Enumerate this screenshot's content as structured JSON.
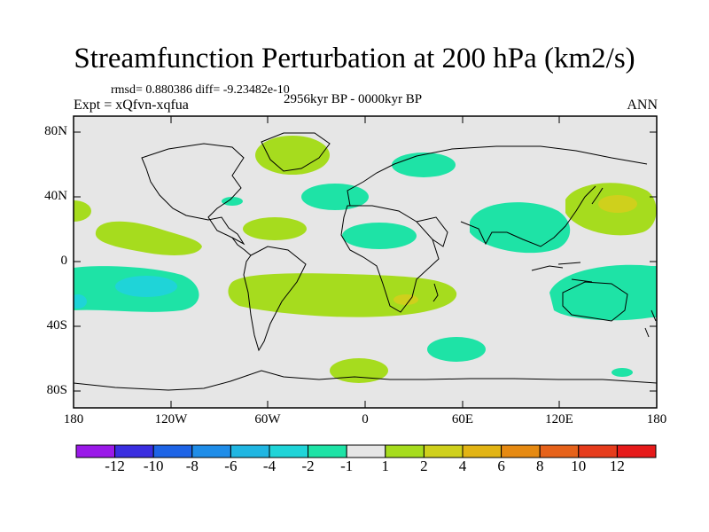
{
  "title": "Streamfunction Perturbation at 200 hPa (km2/s)",
  "stats_line": "rmsd= 0.880386 diff= -9.23482e-10",
  "experiment": "Expt = xQfvn-xqfua",
  "period": "2956kyr BP - 0000kyr BP",
  "season": "ANN",
  "map": {
    "lat_labels": [
      "80N",
      "40N",
      "0",
      "40S",
      "80S"
    ],
    "lon_labels": [
      "180",
      "120W",
      "60W",
      "0",
      "60E",
      "120E",
      "180"
    ],
    "background_color": "#e6e6e6"
  },
  "colorbar": {
    "labels": [
      "-12",
      "-10",
      "-8",
      "-6",
      "-4",
      "-2",
      "-1",
      "1",
      "2",
      "4",
      "6",
      "8",
      "10",
      "12"
    ],
    "colors": [
      "#9a19e8",
      "#3a2ee0",
      "#1e64e6",
      "#1f8de8",
      "#20b6e2",
      "#1fd4d8",
      "#1ee3a6",
      "#e6e6e6",
      "#a6dc1e",
      "#cfd01c",
      "#e2b414",
      "#e68a12",
      "#e6621a",
      "#e63c1c",
      "#e61a1a"
    ]
  },
  "chart_data": {
    "type": "heatmap",
    "title": "Streamfunction Perturbation at 200 hPa (km2/s)",
    "variable": "streamfunction perturbation",
    "units": "km2/s",
    "level": "200 hPa",
    "x_range_deg": [
      -180,
      180
    ],
    "y_range_deg": [
      -90,
      90
    ],
    "features": [
      {
        "name": "NE Pacific / Japan positive center",
        "lon": 150,
        "lat": 38,
        "value_band": "2 to 6"
      },
      {
        "name": "Greenland positive",
        "lon": -40,
        "lat": 72,
        "value_band": "1 to 2"
      },
      {
        "name": "North Atlantic negative",
        "lon": -20,
        "lat": 42,
        "value_band": "-2 to -1"
      },
      {
        "name": "Eurasia negative",
        "lon": 45,
        "lat": 62,
        "value_band": "-2 to -1"
      },
      {
        "name": "South Asia negative",
        "lon": 85,
        "lat": 28,
        "value_band": "-2 to -1"
      },
      {
        "name": "Central Pacific positive",
        "lon": -125,
        "lat": 22,
        "value_band": "1 to 2"
      },
      {
        "name": "Caribbean positive",
        "lon": -50,
        "lat": 20,
        "value_band": "1 to 2"
      },
      {
        "name": "Saharan negative",
        "lon": -5,
        "lat": 15,
        "value_band": "-2 to -1"
      },
      {
        "name": "South Pacific negative",
        "lon": -130,
        "lat": -15,
        "value_band": "-4 to -1"
      },
      {
        "name": "Southern subtropical positive band",
        "lon": 10,
        "lat": -20,
        "value_band": "1 to 4"
      },
      {
        "name": "Australia negative",
        "lon": 150,
        "lat": -25,
        "value_band": "-2 to -1"
      },
      {
        "name": "Southern Ocean negative",
        "lon": 40,
        "lat": -45,
        "value_band": "-2 to -1"
      },
      {
        "name": "Antarctic positive",
        "lon": 0,
        "lat": -70,
        "value_band": "1 to 2"
      }
    ]
  }
}
